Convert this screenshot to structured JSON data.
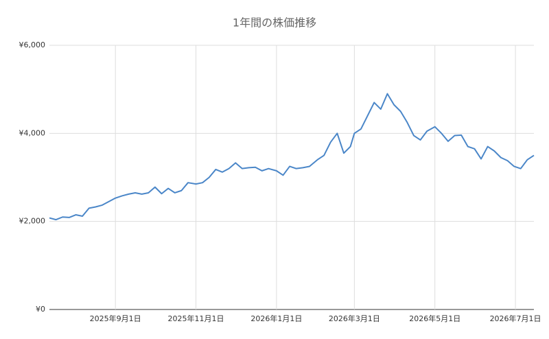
{
  "chart_data": {
    "type": "line",
    "title": "1年間の株価推移",
    "x": [
      "2025-07-13",
      "2025-07-18",
      "2025-07-23",
      "2025-07-28",
      "2025-08-02",
      "2025-08-07",
      "2025-08-12",
      "2025-08-17",
      "2025-08-22",
      "2025-08-27",
      "2025-09-01",
      "2025-09-06",
      "2025-09-11",
      "2025-09-16",
      "2025-09-21",
      "2025-09-26",
      "2025-10-01",
      "2025-10-06",
      "2025-10-11",
      "2025-10-16",
      "2025-10-21",
      "2025-10-26",
      "2025-11-01",
      "2025-11-06",
      "2025-11-11",
      "2025-11-16",
      "2025-11-21",
      "2025-11-26",
      "2025-12-01",
      "2025-12-06",
      "2025-12-11",
      "2025-12-16",
      "2025-12-21",
      "2025-12-26",
      "2026-01-01",
      "2026-01-06",
      "2026-01-11",
      "2026-01-16",
      "2026-01-21",
      "2026-01-26",
      "2026-02-01",
      "2026-02-06",
      "2026-02-11",
      "2026-02-16",
      "2026-02-21",
      "2026-02-26",
      "2026-03-01",
      "2026-03-06",
      "2026-03-11",
      "2026-03-16",
      "2026-03-21",
      "2026-03-26",
      "2026-03-31",
      "2026-04-05",
      "2026-04-10",
      "2026-04-15",
      "2026-04-20",
      "2026-04-25",
      "2026-05-01",
      "2026-05-06",
      "2026-05-11",
      "2026-05-16",
      "2026-05-21",
      "2026-05-26",
      "2026-05-31",
      "2026-06-05",
      "2026-06-10",
      "2026-06-15",
      "2026-06-20",
      "2026-06-25",
      "2026-06-30",
      "2026-07-05",
      "2026-07-10",
      "2026-07-15"
    ],
    "series": [
      {
        "color": "#4a86c8",
        "values": [
          2080,
          2040,
          2100,
          2090,
          2150,
          2120,
          2300,
          2330,
          2370,
          2450,
          2530,
          2580,
          2620,
          2650,
          2620,
          2650,
          2780,
          2630,
          2750,
          2650,
          2700,
          2880,
          2850,
          2880,
          3000,
          3180,
          3120,
          3200,
          3330,
          3200,
          3220,
          3230,
          3150,
          3200,
          3150,
          3050,
          3250,
          3200,
          3220,
          3250,
          3400,
          3500,
          3800,
          4000,
          3550,
          3700,
          4000,
          4100,
          4400,
          4700,
          4550,
          4900,
          4650,
          4500,
          4250,
          3950,
          3850,
          4050,
          4150,
          4000,
          3820,
          3950,
          3960,
          3700,
          3650,
          3420,
          3700,
          3600,
          3450,
          3380,
          3250,
          3200,
          3400,
          3500
        ]
      }
    ],
    "xlim": [
      "2025-07-13",
      "2026-07-15"
    ],
    "xticks": [
      {
        "value": "2025-09-01",
        "label": "2025年9月1日"
      },
      {
        "value": "2025-11-01",
        "label": "2025年11月1日"
      },
      {
        "value": "2026-01-01",
        "label": "2026年1月1日"
      },
      {
        "value": "2026-03-01",
        "label": "2026年3月1日"
      },
      {
        "value": "2026-05-01",
        "label": "2026年5月1日"
      },
      {
        "value": "2026-07-01",
        "label": "2026年7月1日"
      }
    ],
    "ylim": [
      0,
      6000
    ],
    "yticks": [
      {
        "value": 0,
        "label": "¥0"
      },
      {
        "value": 2000,
        "label": "¥2,000"
      },
      {
        "value": 4000,
        "label": "¥4,000"
      },
      {
        "value": 6000,
        "label": "¥6,000"
      }
    ],
    "grid": true
  }
}
